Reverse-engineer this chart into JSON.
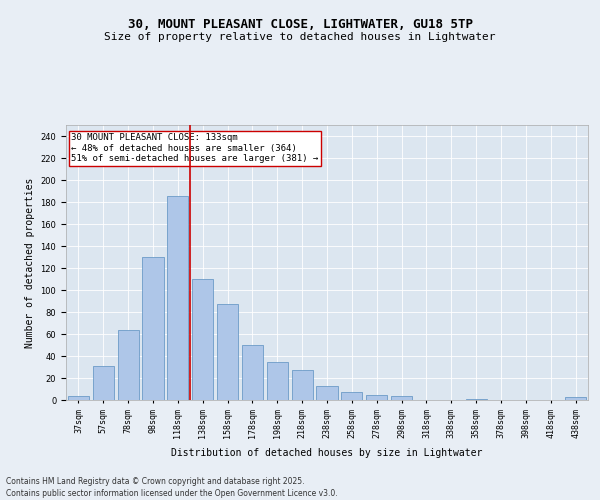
{
  "title_line1": "30, MOUNT PLEASANT CLOSE, LIGHTWATER, GU18 5TP",
  "title_line2": "Size of property relative to detached houses in Lightwater",
  "xlabel": "Distribution of detached houses by size in Lightwater",
  "ylabel": "Number of detached properties",
  "bar_labels": [
    "37sqm",
    "57sqm",
    "78sqm",
    "98sqm",
    "118sqm",
    "138sqm",
    "158sqm",
    "178sqm",
    "198sqm",
    "218sqm",
    "238sqm",
    "258sqm",
    "278sqm",
    "298sqm",
    "318sqm",
    "338sqm",
    "358sqm",
    "378sqm",
    "398sqm",
    "418sqm",
    "438sqm"
  ],
  "bar_values": [
    4,
    31,
    64,
    130,
    185,
    110,
    87,
    50,
    35,
    27,
    13,
    7,
    5,
    4,
    0,
    0,
    1,
    0,
    0,
    0,
    3
  ],
  "bar_color": "#aec6e8",
  "bar_edgecolor": "#5a8fc0",
  "vline_color": "#cc0000",
  "annotation_text": "30 MOUNT PLEASANT CLOSE: 133sqm\n← 48% of detached houses are smaller (364)\n51% of semi-detached houses are larger (381) →",
  "annotation_box_color": "#ffffff",
  "annotation_box_edge": "#cc0000",
  "ylim": [
    0,
    250
  ],
  "yticks": [
    0,
    20,
    40,
    60,
    80,
    100,
    120,
    140,
    160,
    180,
    200,
    220,
    240
  ],
  "bg_color": "#e8eef5",
  "plot_bg_color": "#dce6f0",
  "footer": "Contains HM Land Registry data © Crown copyright and database right 2025.\nContains public sector information licensed under the Open Government Licence v3.0.",
  "title_fontsize": 9,
  "subtitle_fontsize": 8,
  "axis_label_fontsize": 7,
  "tick_fontsize": 6,
  "annotation_fontsize": 6.5,
  "footer_fontsize": 5.5
}
